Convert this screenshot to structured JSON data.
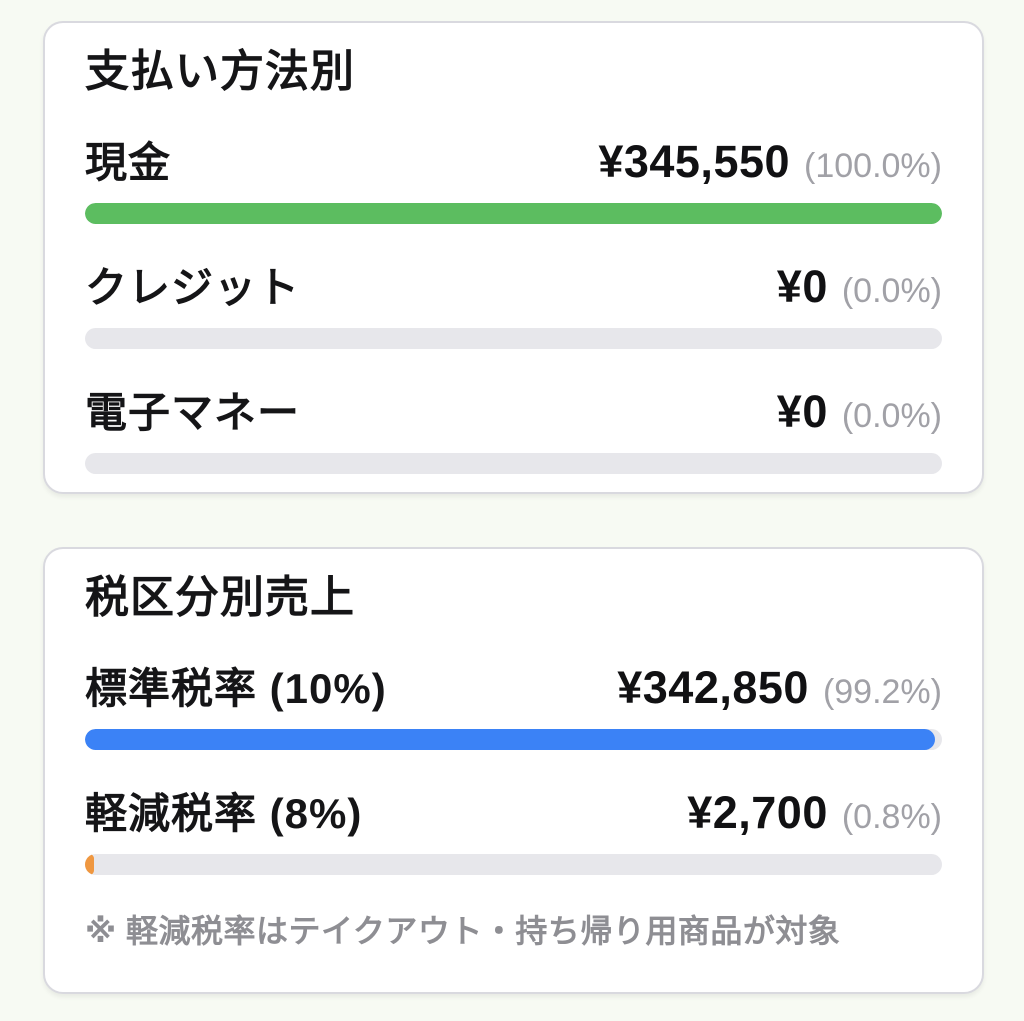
{
  "page": {
    "background_color": "#f7faf3",
    "track_color": "#e7e7eb"
  },
  "cards": [
    {
      "title": "支払い方法別",
      "rows": [
        {
          "label": "現金",
          "amount": "¥345,550",
          "percent_label": "(100.0%)",
          "percent": 100.0,
          "bar_color": "#5cbd60"
        },
        {
          "label": "クレジット",
          "amount": "¥0",
          "percent_label": "(0.0%)",
          "percent": 0.0,
          "bar_color": "#5cbd60"
        },
        {
          "label": "電子マネー",
          "amount": "¥0",
          "percent_label": "(0.0%)",
          "percent": 0.0,
          "bar_color": "#5cbd60"
        }
      ]
    },
    {
      "title": "税区分別売上",
      "rows": [
        {
          "label": "標準税率 (10%)",
          "amount": "¥342,850",
          "percent_label": "(99.2%)",
          "percent": 99.2,
          "bar_color": "#3b82f6"
        },
        {
          "label": "軽減税率 (8%)",
          "amount": "¥2,700",
          "percent_label": "(0.8%)",
          "percent": 0.8,
          "bar_color": "#ef9740"
        }
      ],
      "note": "※ 軽減税率はテイクアウト・持ち帰り用商品が対象"
    }
  ]
}
